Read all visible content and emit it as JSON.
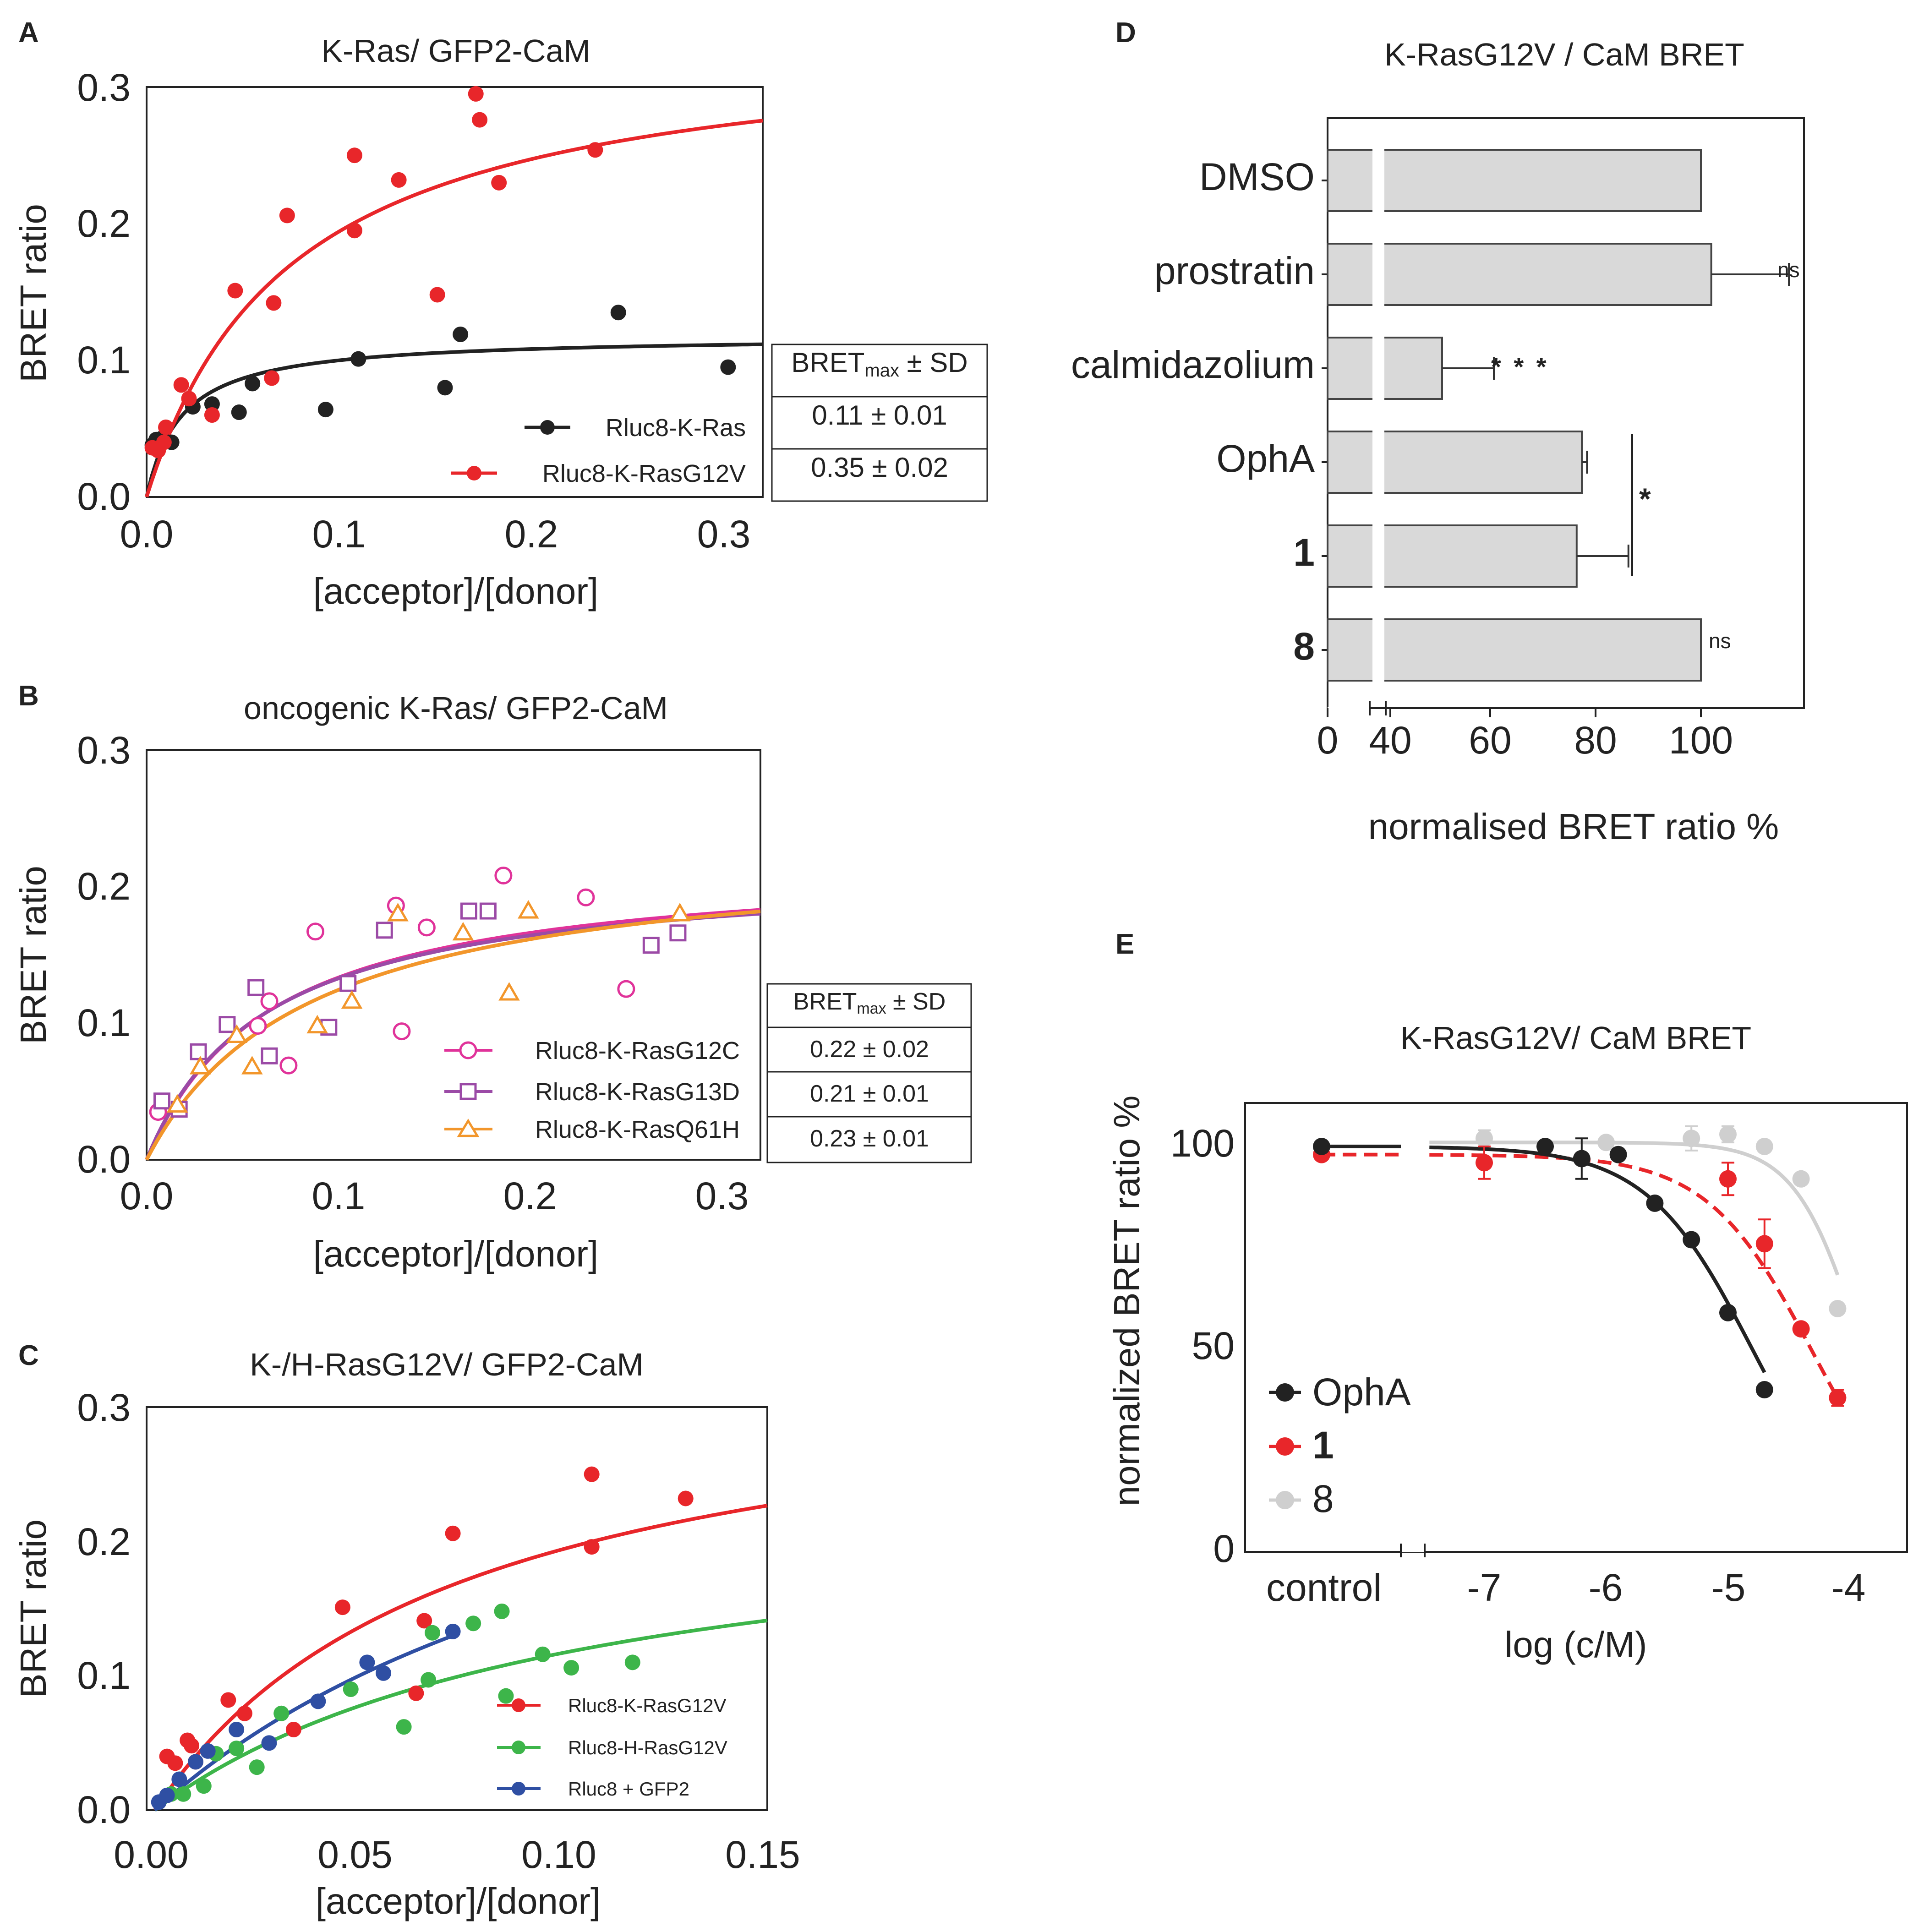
{
  "figure": {
    "colors": {
      "black": "#222222",
      "red": "#e8262a",
      "orange": "#f2962b",
      "magenta": "#e0339a",
      "purple": "#9b4aa6",
      "green": "#3db54a",
      "blue": "#2f4fa3",
      "grey": "#cfcfcf",
      "bar": "#d9d9d9"
    }
  },
  "chart_data": [
    {
      "id": "A",
      "type": "scatter",
      "title": "K-Ras/ GFP2-CaM",
      "xlabel": "[acceptor]/[donor]",
      "ylabel": "BRET ratio",
      "xlim": [
        0,
        0.32
      ],
      "ylim": [
        0,
        0.3
      ],
      "xticks": [
        "0.0",
        "0.1",
        "0.2",
        "0.3"
      ],
      "yticks": [
        "0.0",
        "0.1",
        "0.2",
        "0.3"
      ],
      "series": [
        {
          "name": "Rluc8-K-Ras",
          "color": "#222222",
          "x": [
            0.003,
            0.005,
            0.008,
            0.013,
            0.024,
            0.034,
            0.048,
            0.055,
            0.093,
            0.11,
            0.155,
            0.163,
            0.245,
            0.302
          ],
          "y": [
            0.038,
            0.042,
            0.043,
            0.04,
            0.066,
            0.068,
            0.062,
            0.083,
            0.064,
            0.101,
            0.08,
            0.119,
            0.135,
            0.095
          ],
          "fit": {
            "bmax": 0.118,
            "k": 0.018
          }
        },
        {
          "name": "Rluc8-K-RasG12V",
          "color": "#e8262a",
          "x": [
            0.003,
            0.006,
            0.009,
            0.01,
            0.018,
            0.022,
            0.034,
            0.046,
            0.066,
            0.065,
            0.073,
            0.108,
            0.108,
            0.131,
            0.151,
            0.171,
            0.173,
            0.183,
            0.233
          ],
          "y": [
            0.036,
            0.034,
            0.04,
            0.051,
            0.082,
            0.072,
            0.06,
            0.151,
            0.142,
            0.087,
            0.206,
            0.195,
            0.25,
            0.232,
            0.148,
            0.295,
            0.276,
            0.23,
            0.254
          ],
          "fit": {
            "bmax": 0.34,
            "k": 0.075
          }
        }
      ],
      "table": {
        "header": "BRETmax ± SD",
        "rows": [
          "0.11 ± 0.01",
          "0.35 ± 0.02"
        ]
      }
    },
    {
      "id": "B",
      "type": "scatter",
      "title": "oncogenic K-Ras/ GFP2-CaM",
      "xlabel": "[acceptor]/[donor]",
      "ylabel": "BRET ratio",
      "xlim": [
        0,
        0.32
      ],
      "ylim": [
        0,
        0.3
      ],
      "xticks": [
        "0.0",
        "0.1",
        "0.2",
        "0.3"
      ],
      "yticks": [
        "0.0",
        "0.1",
        "0.2",
        "0.3"
      ],
      "series": [
        {
          "name": "Rluc8-K-RasG12C",
          "color": "#e0339a",
          "marker": "circle",
          "x": [
            0.006,
            0.058,
            0.064,
            0.074,
            0.088,
            0.13,
            0.133,
            0.146,
            0.186,
            0.229,
            0.25
          ],
          "y": [
            0.035,
            0.098,
            0.116,
            0.069,
            0.167,
            0.186,
            0.094,
            0.17,
            0.208,
            0.192,
            0.125
          ],
          "fit": {
            "bmax": 0.22,
            "k": 0.065
          }
        },
        {
          "name": "Rluc8-K-RasG13D",
          "color": "#9b4aa6",
          "marker": "square",
          "x": [
            0.008,
            0.017,
            0.027,
            0.042,
            0.057,
            0.064,
            0.095,
            0.105,
            0.124,
            0.168,
            0.178,
            0.263,
            0.277
          ],
          "y": [
            0.043,
            0.037,
            0.079,
            0.099,
            0.126,
            0.076,
            0.097,
            0.129,
            0.168,
            0.182,
            0.182,
            0.157,
            0.166
          ],
          "fit": {
            "bmax": 0.215,
            "k": 0.062
          }
        },
        {
          "name": "Rluc8-K-RasQ61H",
          "color": "#f2962b",
          "marker": "triangle",
          "x": [
            0.016,
            0.028,
            0.047,
            0.055,
            0.089,
            0.107,
            0.131,
            0.165,
            0.189,
            0.199,
            0.278
          ],
          "y": [
            0.04,
            0.068,
            0.091,
            0.068,
            0.098,
            0.116,
            0.18,
            0.166,
            0.122,
            0.182,
            0.18
          ],
          "fit": {
            "bmax": 0.23,
            "k": 0.085
          }
        }
      ],
      "table": {
        "header": "BRETmax ± SD",
        "rows": [
          "0.22 ± 0.02",
          "0.21 ± 0.01",
          "0.23 ± 0.01"
        ]
      }
    },
    {
      "id": "C",
      "type": "scatter",
      "title": "K-/H-RasG12V/ GFP2-CaM",
      "xlabel": "[acceptor]/[donor]",
      "ylabel": "BRET ratio",
      "xlim": [
        -0.002,
        0.15
      ],
      "ylim": [
        0,
        0.3
      ],
      "xticks": [
        "0.00",
        "0.05",
        "0.10",
        "0.15"
      ],
      "yticks": [
        "0.0",
        "0.1",
        "0.2",
        "0.3"
      ],
      "series": [
        {
          "name": "Rluc8-K-RasG12V",
          "color": "#e8262a",
          "x": [
            0.003,
            0.005,
            0.008,
            0.009,
            0.01,
            0.018,
            0.022,
            0.034,
            0.046,
            0.064,
            0.066,
            0.073,
            0.107,
            0.107,
            0.13
          ],
          "y": [
            0.04,
            0.035,
            0.052,
            0.048,
            0.036,
            0.082,
            0.072,
            0.06,
            0.151,
            0.087,
            0.141,
            0.206,
            0.25,
            0.196,
            0.232
          ],
          "fit": {
            "bmax": 0.34,
            "k": 0.075
          }
        },
        {
          "name": "Rluc8-H-RasG12V",
          "color": "#3db54a",
          "x": [
            0.004,
            0.007,
            0.012,
            0.015,
            0.02,
            0.025,
            0.031,
            0.048,
            0.061,
            0.067,
            0.068,
            0.078,
            0.085,
            0.086,
            0.095,
            0.102,
            0.117
          ],
          "y": [
            0.012,
            0.012,
            0.018,
            0.042,
            0.046,
            0.032,
            0.072,
            0.09,
            0.062,
            0.097,
            0.132,
            0.139,
            0.148,
            0.085,
            0.116,
            0.106,
            0.11
          ],
          "fit": {
            "bmax": 0.24,
            "k": 0.105
          }
        },
        {
          "name": "Rluc8 + GFP2",
          "color": "#2f4fa3",
          "x": [
            0.001,
            0.003,
            0.006,
            0.01,
            0.013,
            0.02,
            0.028,
            0.04,
            0.052,
            0.056,
            0.073
          ],
          "y": [
            0.006,
            0.011,
            0.023,
            0.036,
            0.044,
            0.06,
            0.05,
            0.081,
            0.11,
            0.102,
            0.133
          ],
          "fit": {
            "bmax": 0.37,
            "k": 0.135,
            "xmax": 0.074
          }
        }
      ]
    },
    {
      "id": "D",
      "type": "bar",
      "title": "K-RasG12V / CaM BRET",
      "xlabel": "normalised BRET ratio %",
      "categories": [
        "DMSO",
        "prostratin",
        "calmidazolium",
        "OphA",
        "1",
        "8"
      ],
      "values": [
        100,
        102,
        50,
        77,
        76,
        100
      ],
      "errors": [
        0,
        15,
        10,
        1,
        10,
        0
      ],
      "annotations": [
        "",
        "ns",
        "* * *",
        "",
        "",
        "ns"
      ],
      "bracket_label": "*",
      "xticks": [
        "0",
        "40",
        "60",
        "80",
        "100"
      ]
    },
    {
      "id": "E",
      "type": "line",
      "title": "K-RasG12V/ CaM BRET",
      "xlabel": "log (c/M)",
      "ylabel": "normalized BRET ratio %",
      "xticks": [
        "control",
        "-7",
        "-6",
        "-5",
        "-4"
      ],
      "yticks": [
        "0",
        "50",
        "100"
      ],
      "ylim": [
        0,
        110
      ],
      "series": [
        {
          "name": "OphA",
          "color": "#222222",
          "x": [
            -6.5,
            -6.2,
            -5.9,
            -5.6,
            -5.3,
            -5.0,
            -4.7
          ],
          "y": [
            100,
            97,
            98,
            86,
            77,
            59,
            40
          ],
          "err": [
            0,
            5,
            0,
            0,
            0,
            0,
            0
          ],
          "control": 100,
          "fit": {
            "top": 100,
            "bottom": 0,
            "ec": -4.8,
            "h": 1.0,
            "x0": -7.0,
            "x1": -4.7
          }
        },
        {
          "name": "1",
          "color": "#e8262a",
          "dashed": true,
          "x": [
            -7.0,
            -5.0,
            -4.7,
            -4.4,
            -4.1
          ],
          "y": [
            96,
            92,
            76,
            55,
            38
          ],
          "err": [
            4,
            4,
            6,
            0,
            2
          ],
          "control": 98,
          "fit": {
            "top": 98,
            "bottom": 0,
            "ec": -4.3,
            "h": 1.0,
            "x0": -7.0,
            "x1": -4.1
          }
        },
        {
          "name": "8",
          "color": "#cfcfcf",
          "x": [
            -7.0,
            -6.0,
            -5.3,
            -5.0,
            -4.7,
            -4.4,
            -4.1
          ],
          "y": [
            102,
            101,
            102,
            103,
            100,
            92,
            60
          ],
          "err": [
            2,
            0,
            3,
            2,
            0,
            0,
            0
          ],
          "control": 100,
          "fit": {
            "top": 101,
            "bottom": 0,
            "ec": -3.9,
            "h": 1.6,
            "x0": -7.0,
            "x1": -4.1
          }
        }
      ]
    }
  ]
}
